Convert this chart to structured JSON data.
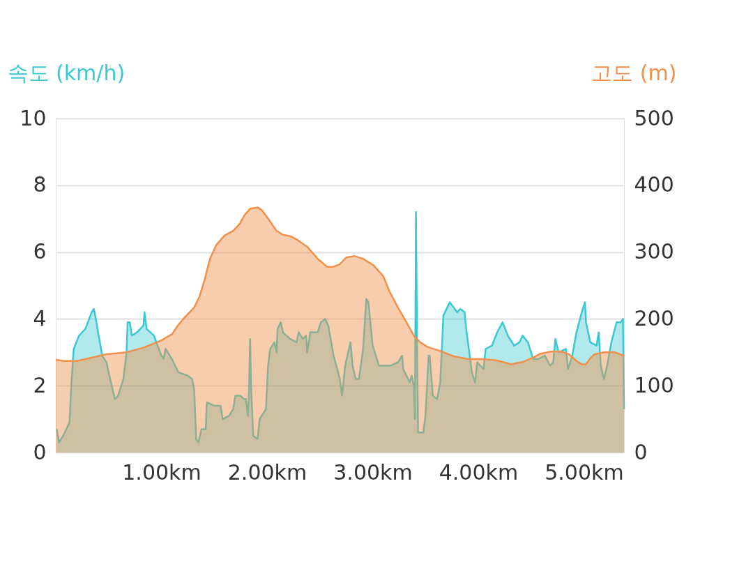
{
  "chart_data": {
    "type": "area",
    "ylabel": "속도 (km/h)",
    "y2label": "고도 (m)",
    "xlim": [
      0,
      5.38
    ],
    "xticks": [
      {
        "value": 1,
        "label": "1.00km"
      },
      {
        "value": 2,
        "label": "2.00km"
      },
      {
        "value": 3,
        "label": "3.00km"
      },
      {
        "value": 4,
        "label": "4.00km"
      },
      {
        "value": 5,
        "label": "5.00km"
      }
    ],
    "ylim": [
      0,
      10
    ],
    "yticks": [
      0,
      2,
      4,
      6,
      8,
      10
    ],
    "y2lim": [
      0,
      500
    ],
    "y2ticks": [
      0,
      100,
      200,
      300,
      400,
      500
    ],
    "grid": "y",
    "series": [
      {
        "color": "#3cc8d0",
        "axis": "y",
        "x": [
          0.01,
          0.03,
          0.07,
          0.13,
          0.15,
          0.17,
          0.22,
          0.28,
          0.34,
          0.36,
          0.38,
          0.4,
          0.44,
          0.48,
          0.5,
          0.56,
          0.59,
          0.64,
          0.67,
          0.68,
          0.7,
          0.72,
          0.77,
          0.83,
          0.84,
          0.86,
          0.93,
          1.0,
          1.02,
          1.04,
          1.1,
          1.16,
          1.25,
          1.29,
          1.31,
          1.33,
          1.35,
          1.38,
          1.42,
          1.43,
          1.5,
          1.56,
          1.58,
          1.64,
          1.68,
          1.7,
          1.75,
          1.78,
          1.8,
          1.82,
          1.83,
          1.84,
          1.85,
          1.87,
          1.91,
          1.93,
          1.99,
          2.01,
          2.03,
          2.07,
          2.09,
          2.1,
          2.13,
          2.15,
          2.22,
          2.28,
          2.3,
          2.34,
          2.37,
          2.38,
          2.41,
          2.48,
          2.51,
          2.55,
          2.58,
          2.63,
          2.69,
          2.71,
          2.74,
          2.79,
          2.81,
          2.84,
          2.87,
          2.91,
          2.94,
          2.96,
          3.0,
          3.06,
          3.11,
          3.17,
          3.24,
          3.28,
          3.29,
          3.35,
          3.37,
          3.39,
          3.4,
          3.41,
          3.42,
          3.43,
          3.48,
          3.5,
          3.53,
          3.54,
          3.57,
          3.61,
          3.64,
          3.66,
          3.67,
          3.73,
          3.8,
          3.83,
          3.87,
          3.89,
          3.94,
          3.97,
          3.99,
          4.05,
          4.07,
          4.13,
          4.18,
          4.23,
          4.28,
          4.34,
          4.39,
          4.42,
          4.47,
          4.52,
          4.57,
          4.63,
          4.68,
          4.71,
          4.73,
          4.76,
          4.83,
          4.85,
          4.89,
          4.93,
          4.98,
          5.01,
          5.02,
          5.06,
          5.12,
          5.14,
          5.16,
          5.19,
          5.22,
          5.26,
          5.31,
          5.35,
          5.37,
          5.38
        ],
        "values": [
          0.7,
          0.3,
          0.5,
          0.9,
          2.2,
          3.1,
          3.5,
          3.7,
          4.2,
          4.3,
          4.0,
          3.6,
          2.9,
          2.7,
          2.4,
          1.6,
          1.7,
          2.2,
          3.0,
          3.9,
          3.9,
          3.5,
          3.6,
          3.8,
          4.2,
          3.7,
          3.5,
          2.9,
          2.8,
          3.1,
          2.8,
          2.4,
          2.3,
          2.2,
          1.9,
          0.4,
          0.3,
          0.7,
          0.7,
          1.5,
          1.4,
          1.4,
          1.0,
          1.1,
          1.3,
          1.7,
          1.7,
          1.6,
          1.6,
          1.1,
          1.9,
          3.4,
          1.9,
          0.5,
          0.4,
          1.0,
          1.3,
          2.6,
          3.1,
          3.3,
          3.0,
          3.7,
          3.9,
          3.6,
          3.4,
          3.3,
          3.6,
          3.4,
          3.5,
          3.0,
          3.6,
          3.6,
          3.9,
          4.0,
          3.8,
          2.9,
          2.2,
          1.7,
          2.6,
          3.3,
          2.6,
          2.2,
          2.2,
          3.1,
          4.6,
          4.5,
          3.2,
          2.6,
          2.6,
          2.6,
          2.7,
          2.9,
          2.5,
          2.1,
          2.3,
          2.0,
          1.0,
          7.2,
          3.4,
          0.6,
          0.6,
          1.1,
          2.9,
          2.9,
          1.7,
          1.6,
          2.1,
          3.4,
          4.1,
          4.5,
          4.2,
          4.3,
          4.2,
          3.6,
          2.4,
          2.1,
          2.7,
          2.5,
          3.1,
          3.2,
          3.6,
          3.9,
          3.5,
          3.2,
          3.3,
          3.5,
          3.3,
          2.8,
          2.8,
          2.9,
          2.6,
          2.7,
          3.4,
          3.0,
          3.1,
          2.5,
          2.9,
          3.6,
          4.2,
          4.5,
          3.9,
          3.3,
          3.2,
          3.6,
          2.6,
          2.2,
          2.6,
          3.3,
          3.9,
          3.9,
          4.0,
          1.3
        ]
      },
      {
        "color": "#f0904a",
        "axis": "y2",
        "x": [
          0.0,
          0.07,
          0.2,
          0.34,
          0.47,
          0.67,
          0.83,
          1.0,
          1.1,
          1.16,
          1.23,
          1.31,
          1.36,
          1.41,
          1.46,
          1.52,
          1.6,
          1.68,
          1.74,
          1.79,
          1.84,
          1.91,
          1.95,
          2.02,
          2.09,
          2.15,
          2.22,
          2.28,
          2.38,
          2.48,
          2.57,
          2.63,
          2.69,
          2.75,
          2.83,
          2.91,
          3.01,
          3.1,
          3.16,
          3.24,
          3.32,
          3.39,
          3.45,
          3.52,
          3.64,
          3.77,
          3.9,
          4.03,
          4.17,
          4.31,
          4.43,
          4.53,
          4.59,
          4.69,
          4.79,
          4.86,
          4.93,
          4.98,
          5.02,
          5.06,
          5.1,
          5.19,
          5.29,
          5.38
        ],
        "values": [
          139,
          137,
          137,
          142,
          147,
          150,
          157,
          168,
          177,
          191,
          204,
          217,
          233,
          259,
          290,
          311,
          325,
          332,
          342,
          356,
          365,
          367,
          363,
          348,
          332,
          326,
          324,
          319,
          308,
          290,
          278,
          278,
          282,
          292,
          294,
          290,
          280,
          264,
          241,
          217,
          195,
          175,
          165,
          158,
          152,
          144,
          140,
          140,
          138,
          132,
          136,
          143,
          148,
          151,
          151,
          147,
          137,
          132,
          132,
          141,
          147,
          150,
          150,
          145
        ]
      }
    ]
  }
}
